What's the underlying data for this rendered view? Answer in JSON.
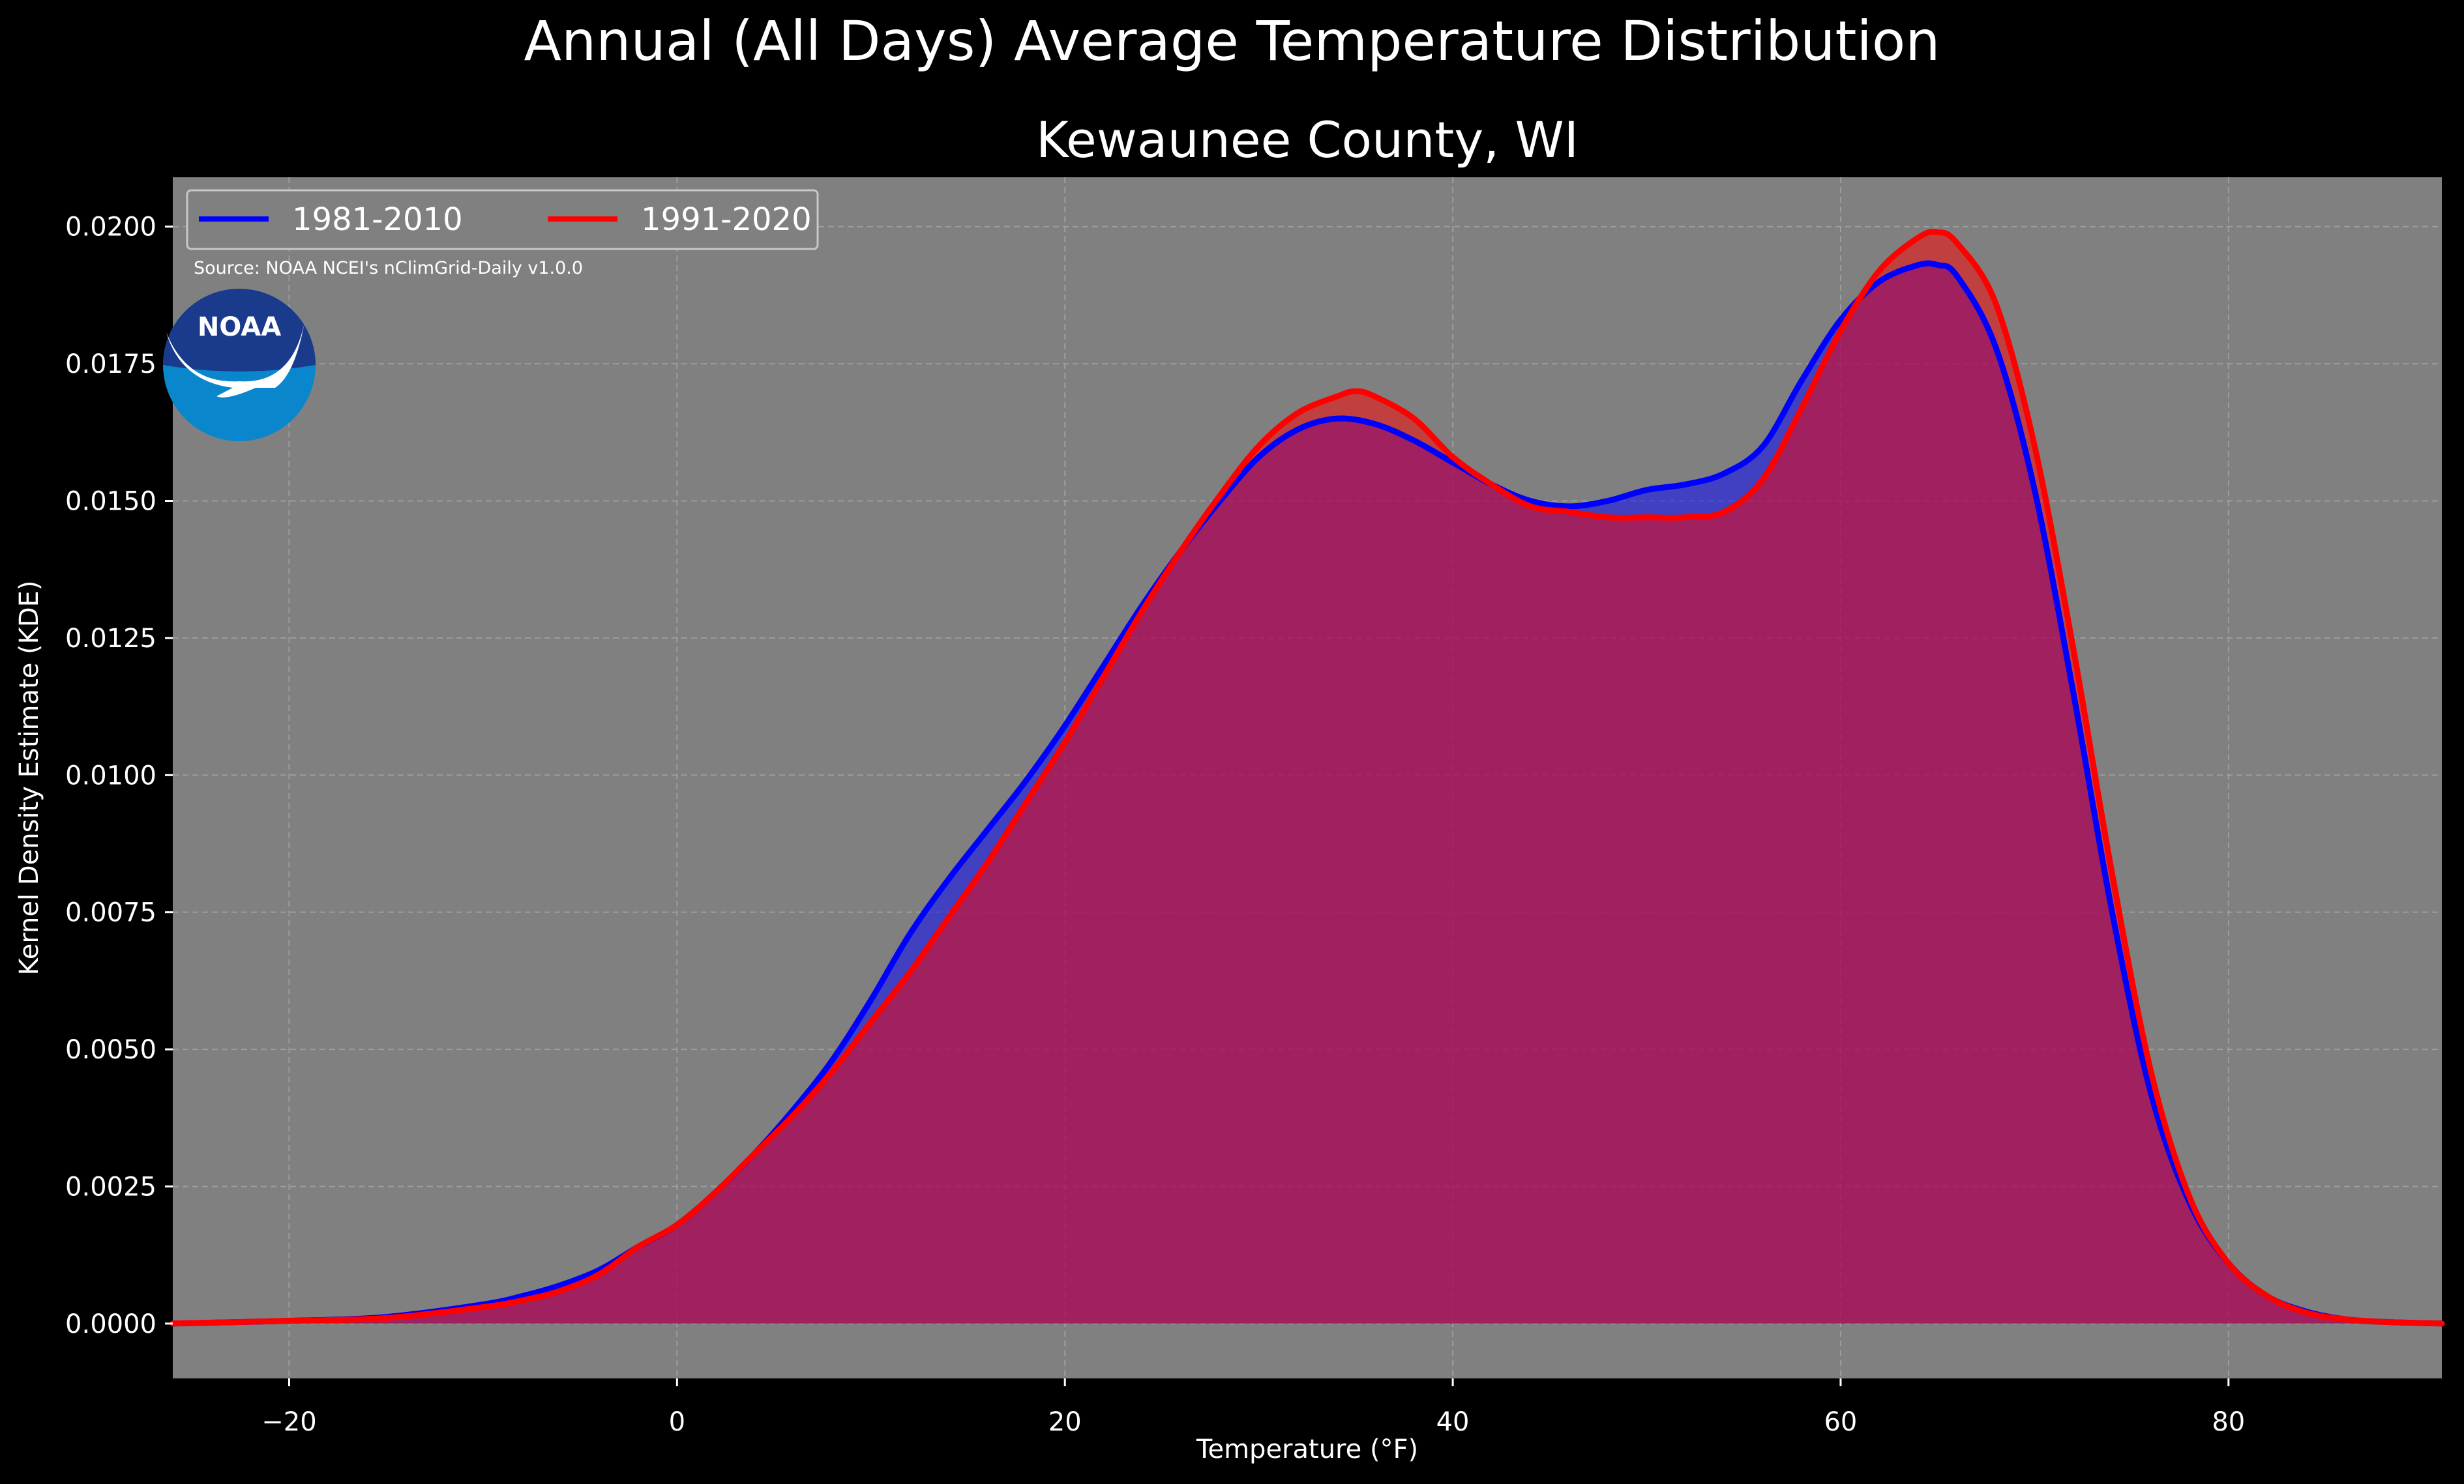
{
  "chart_data": {
    "type": "area",
    "title": "Annual (All Days) Average Temperature Distribution",
    "subtitle": "Kewaunee County, WI",
    "xlabel": "Temperature (°F)",
    "ylabel": "Kernel Density Estimate (KDE)",
    "xlim": [
      -26,
      91
    ],
    "ylim": [
      -0.001,
      0.0209
    ],
    "xticks": [
      -20,
      0,
      20,
      40,
      60,
      80
    ],
    "xtick_labels": [
      "−20",
      "0",
      "20",
      "40",
      "60",
      "80"
    ],
    "yticks": [
      0,
      0.0025,
      0.005,
      0.0075,
      0.01,
      0.0125,
      0.015,
      0.0175,
      0.02
    ],
    "ytick_labels": [
      "0.0000",
      "0.0025",
      "0.0050",
      "0.0075",
      "0.0100",
      "0.0125",
      "0.0150",
      "0.0175",
      "0.0200"
    ],
    "grid": true,
    "legend_position": "top-left",
    "source_text": "Source: NOAA NCEI's nClimGrid-Daily v1.0.0",
    "logo_text": "NOAA",
    "colors": {
      "background": "#000000",
      "axes_face": "#808080",
      "text": "#ffffff",
      "grid": "#a8a8a8",
      "logo_dark": "#1a3a8c",
      "logo_light": "#0a86cd"
    },
    "series": [
      {
        "name": "1981-2010",
        "color": "#0000ff",
        "fill_opacity": 0.5,
        "x": [
          -26,
          -20,
          -15,
          -10,
          -8,
          -6,
          -4,
          -2,
          0,
          2,
          4,
          6,
          8,
          10,
          12,
          14,
          16,
          18,
          20,
          22,
          24,
          26,
          28,
          30,
          32,
          34,
          36,
          38,
          40,
          42,
          44,
          46,
          48,
          50,
          52,
          54,
          56,
          58,
          60,
          62,
          64,
          65,
          66,
          68,
          70,
          72,
          74,
          76,
          78,
          80,
          82,
          84,
          86,
          88,
          91
        ],
        "y": [
          0.0,
          5e-05,
          0.00012,
          0.00035,
          0.0005,
          0.0007,
          0.00098,
          0.0014,
          0.0018,
          0.0024,
          0.0031,
          0.0039,
          0.0048,
          0.0059,
          0.0071,
          0.0081,
          0.009,
          0.0099,
          0.0109,
          0.012,
          0.0131,
          0.0141,
          0.015,
          0.0158,
          0.0163,
          0.0165,
          0.0164,
          0.0161,
          0.0157,
          0.0153,
          0.015,
          0.0149,
          0.015,
          0.0152,
          0.0153,
          0.0155,
          0.016,
          0.0172,
          0.0183,
          0.019,
          0.0193,
          0.0193,
          0.0191,
          0.0178,
          0.0152,
          0.0115,
          0.0075,
          0.0042,
          0.0022,
          0.0011,
          0.0005,
          0.00022,
          8e-05,
          3e-05,
          0.0
        ]
      },
      {
        "name": "1991-2020",
        "color": "#ff0000",
        "fill_opacity": 0.5,
        "x": [
          -26,
          -20,
          -15,
          -10,
          -8,
          -6,
          -4,
          -2,
          0,
          2,
          4,
          6,
          8,
          10,
          12,
          14,
          16,
          18,
          20,
          22,
          24,
          26,
          28,
          30,
          32,
          34,
          35,
          36,
          38,
          40,
          42,
          44,
          46,
          48,
          50,
          52,
          54,
          56,
          58,
          60,
          62,
          64,
          65,
          66,
          68,
          70,
          72,
          74,
          76,
          78,
          80,
          82,
          84,
          86,
          88,
          91
        ],
        "y": [
          0.0,
          5e-05,
          0.0001,
          0.0003,
          0.00042,
          0.0006,
          0.0009,
          0.0014,
          0.0018,
          0.0024,
          0.0031,
          0.0038,
          0.0046,
          0.0055,
          0.0064,
          0.0074,
          0.0084,
          0.0095,
          0.0106,
          0.0118,
          0.013,
          0.0141,
          0.0151,
          0.016,
          0.0166,
          0.0169,
          0.017,
          0.0169,
          0.0165,
          0.0158,
          0.0153,
          0.0149,
          0.0148,
          0.0147,
          0.0147,
          0.0147,
          0.0148,
          0.0154,
          0.0167,
          0.0181,
          0.0192,
          0.0198,
          0.0199,
          0.0197,
          0.0186,
          0.016,
          0.0123,
          0.0082,
          0.0046,
          0.0023,
          0.0011,
          0.0005,
          0.0002,
          8e-05,
          3e-05,
          0.0
        ]
      }
    ]
  }
}
